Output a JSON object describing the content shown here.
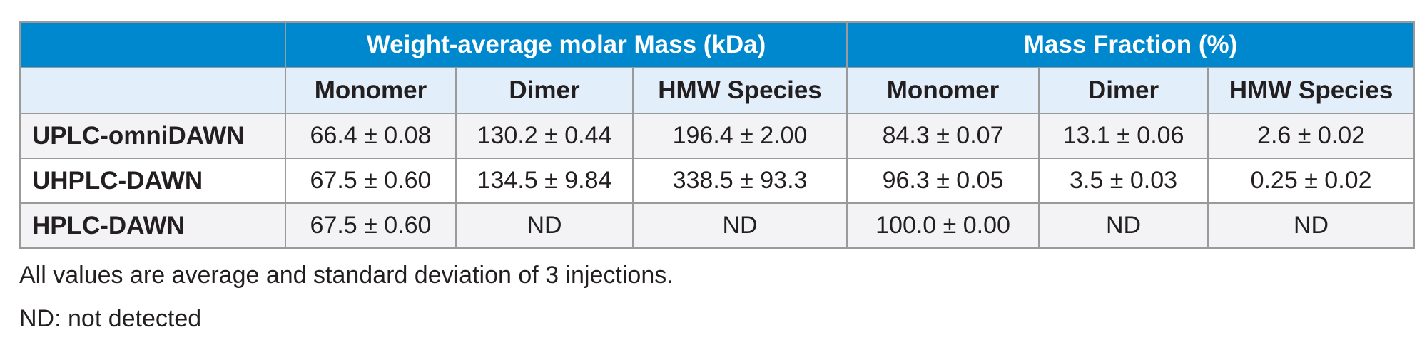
{
  "table": {
    "group_headers": [
      {
        "label": "",
        "span": 1
      },
      {
        "label": "Weight-average molar Mass (kDa)",
        "span": 3
      },
      {
        "label": "Mass Fraction (%)",
        "span": 3
      }
    ],
    "sub_headers": [
      "",
      "Monomer",
      "Dimer",
      "HMW Species",
      "Monomer",
      "Dimer",
      "HMW Species"
    ],
    "rows": [
      {
        "label": "UPLC-omniDAWN",
        "cells": [
          "66.4 ± 0.08",
          "130.2 ± 0.44",
          "196.4 ± 2.00",
          "84.3 ± 0.07",
          "13.1 ± 0.06",
          "2.6 ± 0.02"
        ]
      },
      {
        "label": "UHPLC-DAWN",
        "cells": [
          "67.5 ± 0.60",
          "134.5 ± 9.84",
          "338.5 ± 93.3",
          "96.3 ± 0.05",
          "3.5 ± 0.03",
          "0.25 ± 0.02"
        ]
      },
      {
        "label": "HPLC-DAWN",
        "cells": [
          "67.5 ± 0.60",
          "ND",
          "ND",
          "100.0 ± 0.00",
          "ND",
          "ND"
        ]
      }
    ]
  },
  "footnotes": [
    "All values are average and standard deviation of 3 injections.",
    "ND:  not detected"
  ],
  "colors": {
    "header_blue": "#0088cf",
    "subheader_light_blue": "#e2eefa",
    "row_gray": "#f3f3f5",
    "border_gray": "#9a9a9a"
  }
}
